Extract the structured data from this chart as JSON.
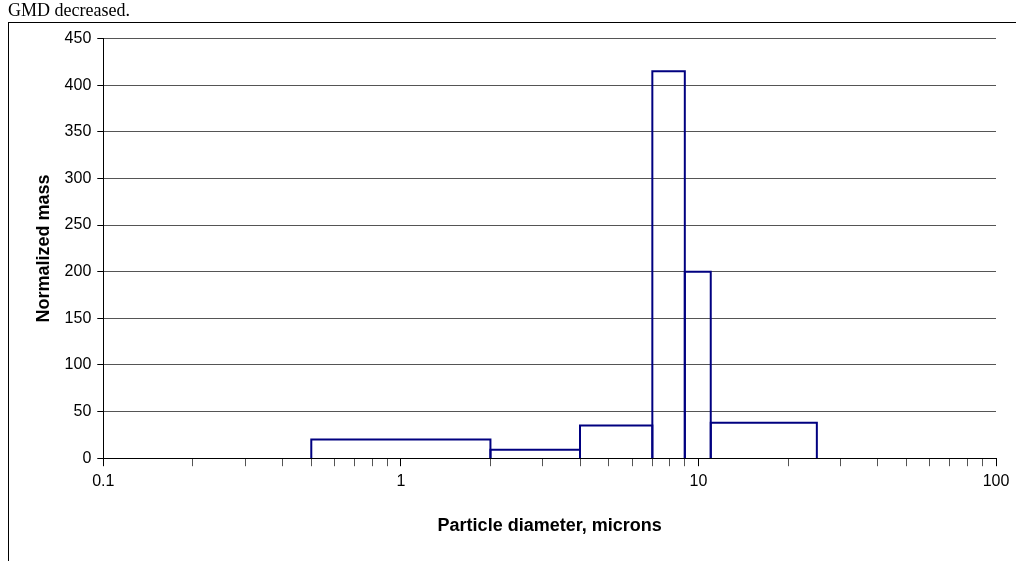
{
  "chart_data": {
    "type": "histogram",
    "annotations": [
      "GMD decreased."
    ],
    "xlabel": "Particle diameter, microns",
    "ylabel": "Normalized mass",
    "bins": [
      0.5,
      2,
      4,
      7,
      9,
      11,
      25
    ],
    "values": [
      20,
      9,
      35,
      415,
      200,
      38
    ],
    "color": "#000080",
    "log": "x",
    "xlim": [
      0.1,
      100
    ],
    "xticks": [
      0.1,
      {
        "value": 0.2,
        "label": null
      },
      {
        "value": 0.3,
        "label": null
      },
      {
        "value": 0.4,
        "label": null
      },
      {
        "value": 0.5,
        "label": null
      },
      {
        "value": 0.6,
        "label": null
      },
      {
        "value": 0.7,
        "label": null
      },
      {
        "value": 0.8,
        "label": null
      },
      {
        "value": 0.9,
        "label": null
      },
      1,
      {
        "value": 2,
        "label": null
      },
      {
        "value": 3,
        "label": null
      },
      {
        "value": 4,
        "label": null
      },
      {
        "value": 5,
        "label": null
      },
      {
        "value": 6,
        "label": null
      },
      {
        "value": 7,
        "label": null
      },
      {
        "value": 8,
        "label": null
      },
      {
        "value": 9,
        "label": null
      },
      10,
      {
        "value": 20,
        "label": null
      },
      {
        "value": 30,
        "label": null
      },
      {
        "value": 40,
        "label": null
      },
      {
        "value": 50,
        "label": null
      },
      {
        "value": 60,
        "label": null
      },
      {
        "value": 70,
        "label": null
      },
      {
        "value": 80,
        "label": null
      },
      {
        "value": 90,
        "label": null
      },
      100
    ],
    "ylim": [
      0,
      450
    ],
    "yticks": [
      0,
      50,
      100,
      150,
      200,
      250,
      300,
      350,
      400,
      450
    ],
    "grid": "y",
    "legend": false
  }
}
